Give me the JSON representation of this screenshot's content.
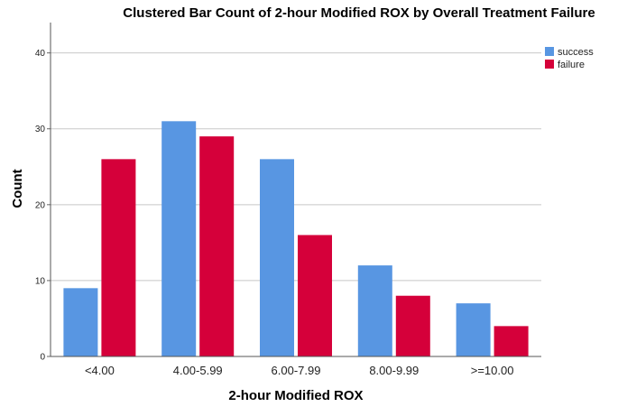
{
  "chart_data": {
    "type": "bar",
    "title": "Clustered Bar Count of 2-hour Modified ROX by Overall Treatment Failure",
    "xlabel": "2-hour Modified ROX",
    "ylabel": "Count",
    "categories": [
      "<4.00",
      "4.00-5.99",
      "6.00-7.99",
      "8.00-9.99",
      ">=10.00"
    ],
    "series": [
      {
        "name": "success",
        "color": "#5896e2",
        "values": [
          9,
          31,
          26,
          12,
          7
        ]
      },
      {
        "name": "failure",
        "color": "#d5003a",
        "values": [
          26,
          29,
          16,
          8,
          4
        ]
      }
    ],
    "ylim": [
      0,
      44
    ],
    "yticks": [
      0,
      10,
      20,
      30,
      40
    ],
    "grid": true,
    "legend": "top-right"
  }
}
